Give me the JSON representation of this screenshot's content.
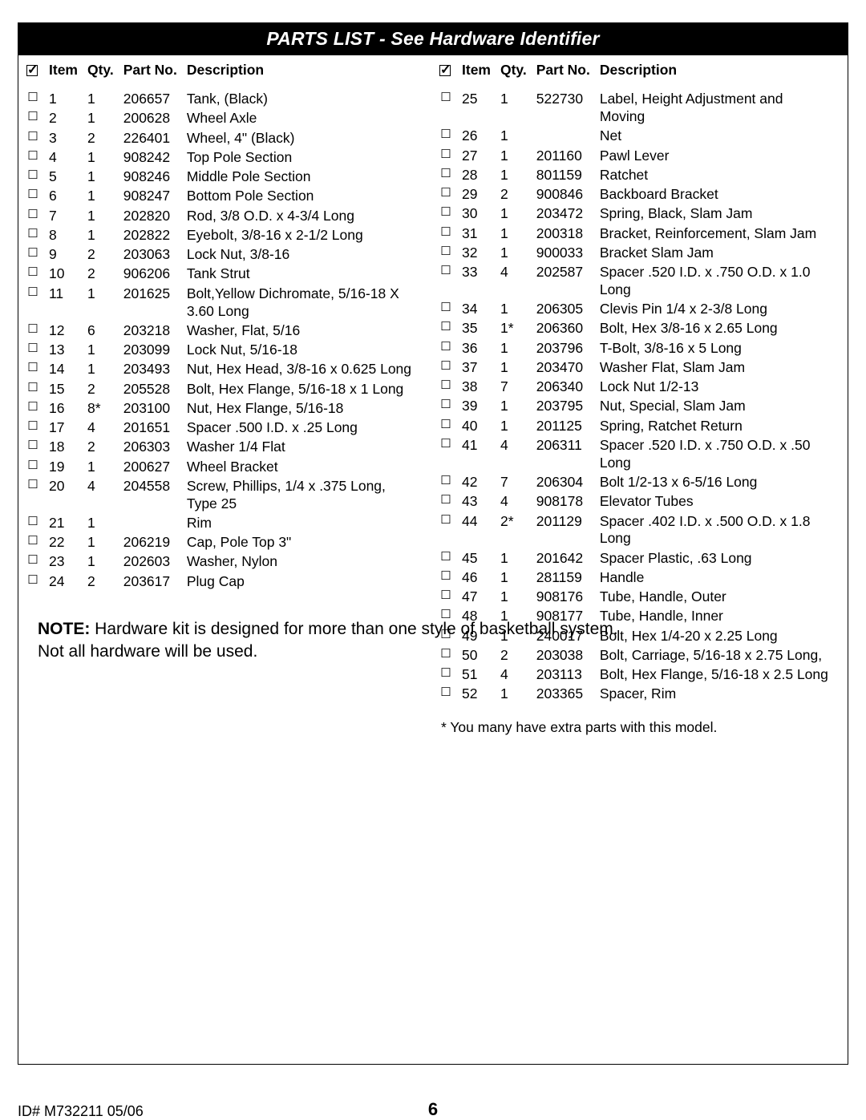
{
  "title": "PARTS LIST - See Hardware Identifier",
  "headers": {
    "item": "Item",
    "qty": "Qty.",
    "part": "Part No.",
    "desc": "Description"
  },
  "left_rows": [
    {
      "i": "1",
      "q": "1",
      "p": "206657",
      "d": "Tank, (Black)"
    },
    {
      "i": "2",
      "q": "1",
      "p": "200628",
      "d": "Wheel Axle"
    },
    {
      "i": "3",
      "q": "2",
      "p": "226401",
      "d": "Wheel, 4\" (Black)"
    },
    {
      "i": "4",
      "q": "1",
      "p": "908242",
      "d": "Top Pole Section"
    },
    {
      "i": "5",
      "q": "1",
      "p": "908246",
      "d": "Middle Pole Section"
    },
    {
      "i": "6",
      "q": "1",
      "p": "908247",
      "d": "Bottom Pole Section"
    },
    {
      "i": "7",
      "q": "1",
      "p": "202820",
      "d": "Rod, 3/8 O.D. x 4-3/4 Long"
    },
    {
      "i": "8",
      "q": "1",
      "p": "202822",
      "d": "Eyebolt, 3/8-16 x 2-1/2 Long"
    },
    {
      "i": "9",
      "q": "2",
      "p": "203063",
      "d": "Lock Nut, 3/8-16"
    },
    {
      "i": "10",
      "q": "2",
      "p": "906206",
      "d": "Tank Strut"
    },
    {
      "i": "11",
      "q": "1",
      "p": "201625",
      "d": "Bolt,Yellow Dichromate, 5/16-18 X 3.60 Long"
    },
    {
      "i": "12",
      "q": "6",
      "p": "203218",
      "d": "Washer, Flat, 5/16"
    },
    {
      "i": "13",
      "q": "1",
      "p": "203099",
      "d": "Lock Nut, 5/16-18"
    },
    {
      "i": "14",
      "q": "1",
      "p": "203493",
      "d": "Nut, Hex Head, 3/8-16 x 0.625 Long"
    },
    {
      "i": "15",
      "q": "2",
      "p": "205528",
      "d": "Bolt, Hex Flange, 5/16-18 x 1 Long"
    },
    {
      "i": "16",
      "q": "8*",
      "p": "203100",
      "d": "Nut, Hex Flange, 5/16-18"
    },
    {
      "i": "17",
      "q": "4",
      "p": "201651",
      "d": "Spacer .500 I.D. x .25 Long"
    },
    {
      "i": "18",
      "q": "2",
      "p": "206303",
      "d": "Washer 1/4 Flat"
    },
    {
      "i": "19",
      "q": "1",
      "p": "200627",
      "d": "Wheel Bracket"
    },
    {
      "i": "20",
      "q": "4",
      "p": "204558",
      "d": "Screw, Phillips, 1/4 x .375 Long, Type 25"
    },
    {
      "i": "21",
      "q": "1",
      "p": "",
      "d": "Rim"
    },
    {
      "i": "22",
      "q": "1",
      "p": "206219",
      "d": "Cap, Pole Top 3\""
    },
    {
      "i": "23",
      "q": "1",
      "p": "202603",
      "d": "Washer, Nylon"
    },
    {
      "i": "24",
      "q": "2",
      "p": "203617",
      "d": "Plug Cap"
    }
  ],
  "right_rows": [
    {
      "i": "25",
      "q": "1",
      "p": "522730",
      "d": "Label, Height Adjustment and Moving"
    },
    {
      "i": "26",
      "q": "1",
      "p": "",
      "d": "Net"
    },
    {
      "i": "27",
      "q": "1",
      "p": "201160",
      "d": "Pawl Lever"
    },
    {
      "i": "28",
      "q": "1",
      "p": "801159",
      "d": "Ratchet"
    },
    {
      "i": "29",
      "q": "2",
      "p": "900846",
      "d": "Backboard Bracket"
    },
    {
      "i": "30",
      "q": "1",
      "p": "203472",
      "d": "Spring, Black, Slam Jam"
    },
    {
      "i": "31",
      "q": "1",
      "p": "200318",
      "d": "Bracket, Reinforcement, Slam Jam"
    },
    {
      "i": "32",
      "q": "1",
      "p": "900033",
      "d": "Bracket Slam Jam"
    },
    {
      "i": "33",
      "q": "4",
      "p": "202587",
      "d": "Spacer .520 I.D. x .750 O.D. x 1.0 Long"
    },
    {
      "i": "34",
      "q": "1",
      "p": "206305",
      "d": "Clevis Pin 1/4 x 2-3/8 Long"
    },
    {
      "i": "35",
      "q": "1*",
      "p": "206360",
      "d": "Bolt, Hex 3/8-16 x 2.65 Long"
    },
    {
      "i": "36",
      "q": "1",
      "p": "203796",
      "d": "T-Bolt, 3/8-16 x 5 Long"
    },
    {
      "i": "37",
      "q": "1",
      "p": "203470",
      "d": "Washer Flat, Slam Jam"
    },
    {
      "i": "38",
      "q": "7",
      "p": "206340",
      "d": "Lock Nut 1/2-13"
    },
    {
      "i": "39",
      "q": "1",
      "p": "203795",
      "d": "Nut, Special, Slam Jam"
    },
    {
      "i": "40",
      "q": "1",
      "p": "201125",
      "d": "Spring, Ratchet Return"
    },
    {
      "i": "41",
      "q": "4",
      "p": "206311",
      "d": "Spacer .520 I.D. x .750 O.D. x .50 Long"
    },
    {
      "i": "42",
      "q": "7",
      "p": "206304",
      "d": "Bolt 1/2-13 x 6-5/16 Long"
    },
    {
      "i": "43",
      "q": "4",
      "p": "908178",
      "d": "Elevator Tubes"
    },
    {
      "i": "44",
      "q": "2*",
      "p": "201129",
      "d": "Spacer .402 I.D. x .500 O.D. x 1.8 Long"
    },
    {
      "i": "45",
      "q": "1",
      "p": "201642",
      "d": "Spacer Plastic, .63 Long"
    },
    {
      "i": "46",
      "q": "1",
      "p": "281159",
      "d": "Handle"
    },
    {
      "i": "47",
      "q": "1",
      "p": "908176",
      "d": "Tube, Handle, Outer"
    },
    {
      "i": "48",
      "q": "1",
      "p": "908177",
      "d": "Tube, Handle, Inner"
    },
    {
      "i": "49",
      "q": "1",
      "p": "240017",
      "d": "Bolt, Hex 1/4-20 x 2.25 Long"
    },
    {
      "i": "50",
      "q": "2",
      "p": "203038",
      "d": "Bolt, Carriage, 5/16-18 x 2.75 Long,"
    },
    {
      "i": "51",
      "q": "4",
      "p": "203113",
      "d": "Bolt, Hex Flange, 5/16-18 x 2.5 Long"
    },
    {
      "i": "52",
      "q": "1",
      "p": "203365",
      "d": "Spacer, Rim"
    }
  ],
  "footnote": "*  You many have extra parts with this model.",
  "note_label": "NOTE:",
  "note_text1": "  Hardware kit is designed for more than one style of basketball system.",
  "note_text2": "Not all hardware will be used.",
  "id_line": "ID#  M732211  05/06",
  "page_number": "6"
}
